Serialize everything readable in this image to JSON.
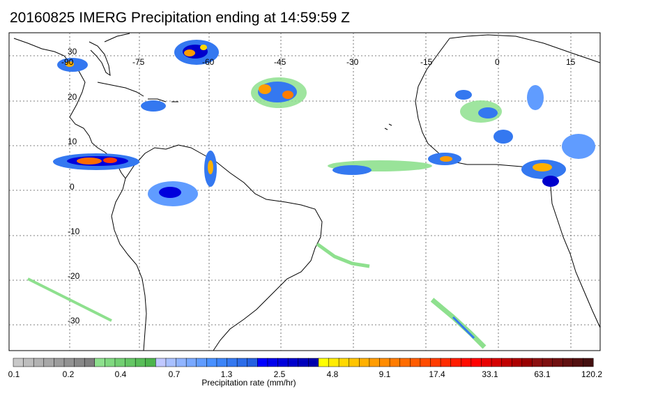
{
  "title": "20160825 IMERG Precipitation ending at 14:59:59 Z",
  "map": {
    "lon_labels": [
      "-90",
      "-75",
      "-60",
      "-45",
      "-30",
      "-15",
      "0",
      "15"
    ],
    "lat_labels": [
      "30",
      "20",
      "10",
      "0",
      "-10",
      "-20",
      "-30"
    ]
  },
  "colorbar": {
    "label": "Precipitation rate (mm/hr)",
    "tick_labels": [
      "0.1",
      "0.2",
      "0.4",
      "0.7",
      "1.3",
      "2.5",
      "4.8",
      "9.1",
      "17.4",
      "33.1",
      "63.1",
      "120.2"
    ],
    "colors": [
      "#c8c8c8",
      "#bdbdbd",
      "#b2b2b2",
      "#a7a7a7",
      "#9c9c9c",
      "#929292",
      "#888888",
      "#7f7f7f",
      "#8ee08e",
      "#80d880",
      "#72cf72",
      "#64c664",
      "#58bd58",
      "#4cb44c",
      "#c0c8ff",
      "#a8c0ff",
      "#90b4ff",
      "#78a8ff",
      "#609cff",
      "#4890ff",
      "#3c84f8",
      "#3478f0",
      "#2c6ce8",
      "#2460e0",
      "#0000ff",
      "#0000ec",
      "#0000dc",
      "#0000cc",
      "#0000bc",
      "#0000ac",
      "#ffff00",
      "#ffec00",
      "#ffd800",
      "#ffc400",
      "#ffb000",
      "#ff9c00",
      "#ff8c00",
      "#ff7c00",
      "#ff6c00",
      "#ff5c00",
      "#ff4c00",
      "#ff3c00",
      "#ff2c00",
      "#ff1c00",
      "#ff0c00",
      "#ff0000",
      "#e80000",
      "#d40000",
      "#c00000",
      "#ac0000",
      "#980000",
      "#8c1010",
      "#7e1010",
      "#701010",
      "#601010",
      "#521010",
      "#441010"
    ]
  }
}
